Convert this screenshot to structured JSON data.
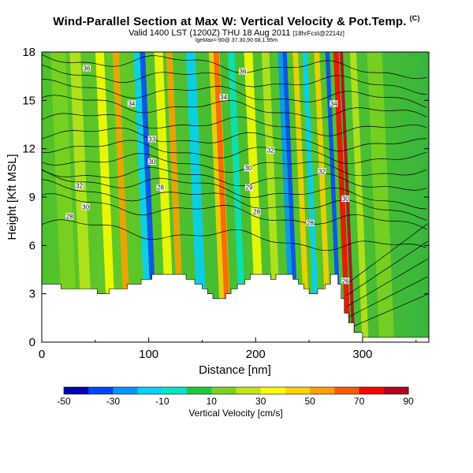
{
  "header": {
    "title": "Wind-Parallel Section at Max W: Vertical Velocity & Pot.Temp.",
    "title_unit": "(C)",
    "subtitle": "Valid 1400 LST (1200Z) THU 18 Aug 2011",
    "subtitle_note": "[18hrFcst@2214z]",
    "small_line": "lgeMax=-90@ 37.30,90 68,1.95m"
  },
  "chart_data": {
    "type": "heatmap",
    "xlabel": "Distance [nm]",
    "ylabel": "Height [Kft MSL]",
    "xlim": [
      0,
      362
    ],
    "ylim": [
      0,
      18
    ],
    "xticks": [
      0,
      100,
      200,
      300
    ],
    "yticks": [
      0,
      3,
      6,
      9,
      12,
      15,
      18
    ],
    "colorbar": {
      "title": "Vertical Velocity [cm/s]",
      "ticks": [
        -50,
        -30,
        -10,
        10,
        30,
        50,
        70,
        90
      ],
      "range": [
        -50,
        90
      ],
      "colors": [
        "#0000b4",
        "#0046ff",
        "#0096ff",
        "#00d2ff",
        "#00e6c8",
        "#1ec83c",
        "#7dd21e",
        "#bee619",
        "#ffff00",
        "#ffd200",
        "#ffa000",
        "#ff5a00",
        "#ff0000",
        "#b4001e"
      ]
    },
    "terrain_kft": [
      [
        0,
        3.6
      ],
      [
        18,
        3.6
      ],
      [
        18,
        3.3
      ],
      [
        52,
        3.3
      ],
      [
        52,
        3.0
      ],
      [
        63,
        3.0
      ],
      [
        63,
        3.3
      ],
      [
        80,
        3.3
      ],
      [
        80,
        3.6
      ],
      [
        93,
        3.6
      ],
      [
        93,
        3.9
      ],
      [
        103,
        3.9
      ],
      [
        103,
        4.2
      ],
      [
        135,
        4.2
      ],
      [
        135,
        3.9
      ],
      [
        143,
        3.9
      ],
      [
        143,
        3.6
      ],
      [
        150,
        3.6
      ],
      [
        150,
        3.3
      ],
      [
        155,
        3.3
      ],
      [
        155,
        3.0
      ],
      [
        160,
        3.0
      ],
      [
        160,
        2.7
      ],
      [
        172,
        2.7
      ],
      [
        172,
        3.0
      ],
      [
        177,
        3.0
      ],
      [
        177,
        3.3
      ],
      [
        183,
        3.3
      ],
      [
        183,
        3.6
      ],
      [
        190,
        3.6
      ],
      [
        190,
        3.9
      ],
      [
        195,
        3.9
      ],
      [
        195,
        4.2
      ],
      [
        214,
        4.2
      ],
      [
        214,
        3.9
      ],
      [
        219,
        3.9
      ],
      [
        219,
        4.2
      ],
      [
        235,
        4.2
      ],
      [
        235,
        3.9
      ],
      [
        240,
        3.9
      ],
      [
        240,
        3.6
      ],
      [
        245,
        3.6
      ],
      [
        245,
        3.3
      ],
      [
        250,
        3.3
      ],
      [
        250,
        3.0
      ],
      [
        258,
        3.0
      ],
      [
        258,
        3.3
      ],
      [
        265,
        3.3
      ],
      [
        265,
        3.6
      ],
      [
        270,
        3.6
      ],
      [
        270,
        4.2
      ],
      [
        277,
        4.2
      ],
      [
        277,
        3.6
      ],
      [
        280,
        3.6
      ],
      [
        280,
        2.7
      ],
      [
        283,
        2.7
      ],
      [
        283,
        1.8
      ],
      [
        287,
        1.8
      ],
      [
        287,
        1.2
      ],
      [
        292,
        1.2
      ],
      [
        292,
        0.6
      ],
      [
        300,
        0.6
      ],
      [
        300,
        0.3
      ],
      [
        362,
        0.3
      ]
    ],
    "w_features": [
      {
        "x": 24,
        "w": 14,
        "value": 15
      },
      {
        "x": 40,
        "w": 10,
        "value": 25
      },
      {
        "x": 63,
        "w": 8,
        "value": 35
      },
      {
        "x": 78,
        "w": 6,
        "value": 55
      },
      {
        "x": 98,
        "w": 7,
        "value": -15
      },
      {
        "x": 103,
        "w": 5,
        "value": -35
      },
      {
        "x": 118,
        "w": 8,
        "value": 30
      },
      {
        "x": 128,
        "w": 6,
        "value": 55
      },
      {
        "x": 148,
        "w": 9,
        "value": -15
      },
      {
        "x": 170,
        "w": 10,
        "value": 40
      },
      {
        "x": 172,
        "w": 5,
        "value": 60
      },
      {
        "x": 186,
        "w": 6,
        "value": -10
      },
      {
        "x": 202,
        "w": 8,
        "value": 30
      },
      {
        "x": 218,
        "w": 7,
        "value": 20
      },
      {
        "x": 232,
        "w": 5,
        "value": -30
      },
      {
        "x": 236,
        "w": 4,
        "value": -40
      },
      {
        "x": 246,
        "w": 5,
        "value": 40
      },
      {
        "x": 255,
        "w": 5,
        "value": -15
      },
      {
        "x": 266,
        "w": 5,
        "value": 45
      },
      {
        "x": 276,
        "w": 4,
        "value": -35
      },
      {
        "x": 284,
        "w": 5,
        "value": 75
      },
      {
        "x": 289,
        "w": 3,
        "value": 85
      },
      {
        "x": 300,
        "w": 6,
        "value": 25
      },
      {
        "x": 320,
        "w": 14,
        "value": 15
      }
    ],
    "contour_labels": [
      {
        "text": "36",
        "x": 42,
        "y": 17.0
      },
      {
        "text": "36",
        "x": 188,
        "y": 16.8
      },
      {
        "text": "34",
        "x": 84,
        "y": 14.8
      },
      {
        "text": "34",
        "x": 170,
        "y": 15.2
      },
      {
        "text": "34",
        "x": 273,
        "y": 14.8
      },
      {
        "text": "32",
        "x": 214,
        "y": 11.9
      },
      {
        "text": "30",
        "x": 193,
        "y": 10.8
      },
      {
        "text": "33",
        "x": 103,
        "y": 12.6
      },
      {
        "text": "32",
        "x": 262,
        "y": 10.6
      },
      {
        "text": "30",
        "x": 103,
        "y": 11.2
      },
      {
        "text": "28",
        "x": 111,
        "y": 9.6
      },
      {
        "text": "29",
        "x": 194,
        "y": 9.6
      },
      {
        "text": "30",
        "x": 284,
        "y": 8.9
      },
      {
        "text": "28",
        "x": 201,
        "y": 8.1
      },
      {
        "text": "32",
        "x": 35,
        "y": 9.7
      },
      {
        "text": "30",
        "x": 41,
        "y": 8.4
      },
      {
        "text": "28",
        "x": 26,
        "y": 7.8
      },
      {
        "text": "28",
        "x": 251,
        "y": 7.4
      },
      {
        "text": "26",
        "x": 284,
        "y": 3.8
      }
    ]
  }
}
